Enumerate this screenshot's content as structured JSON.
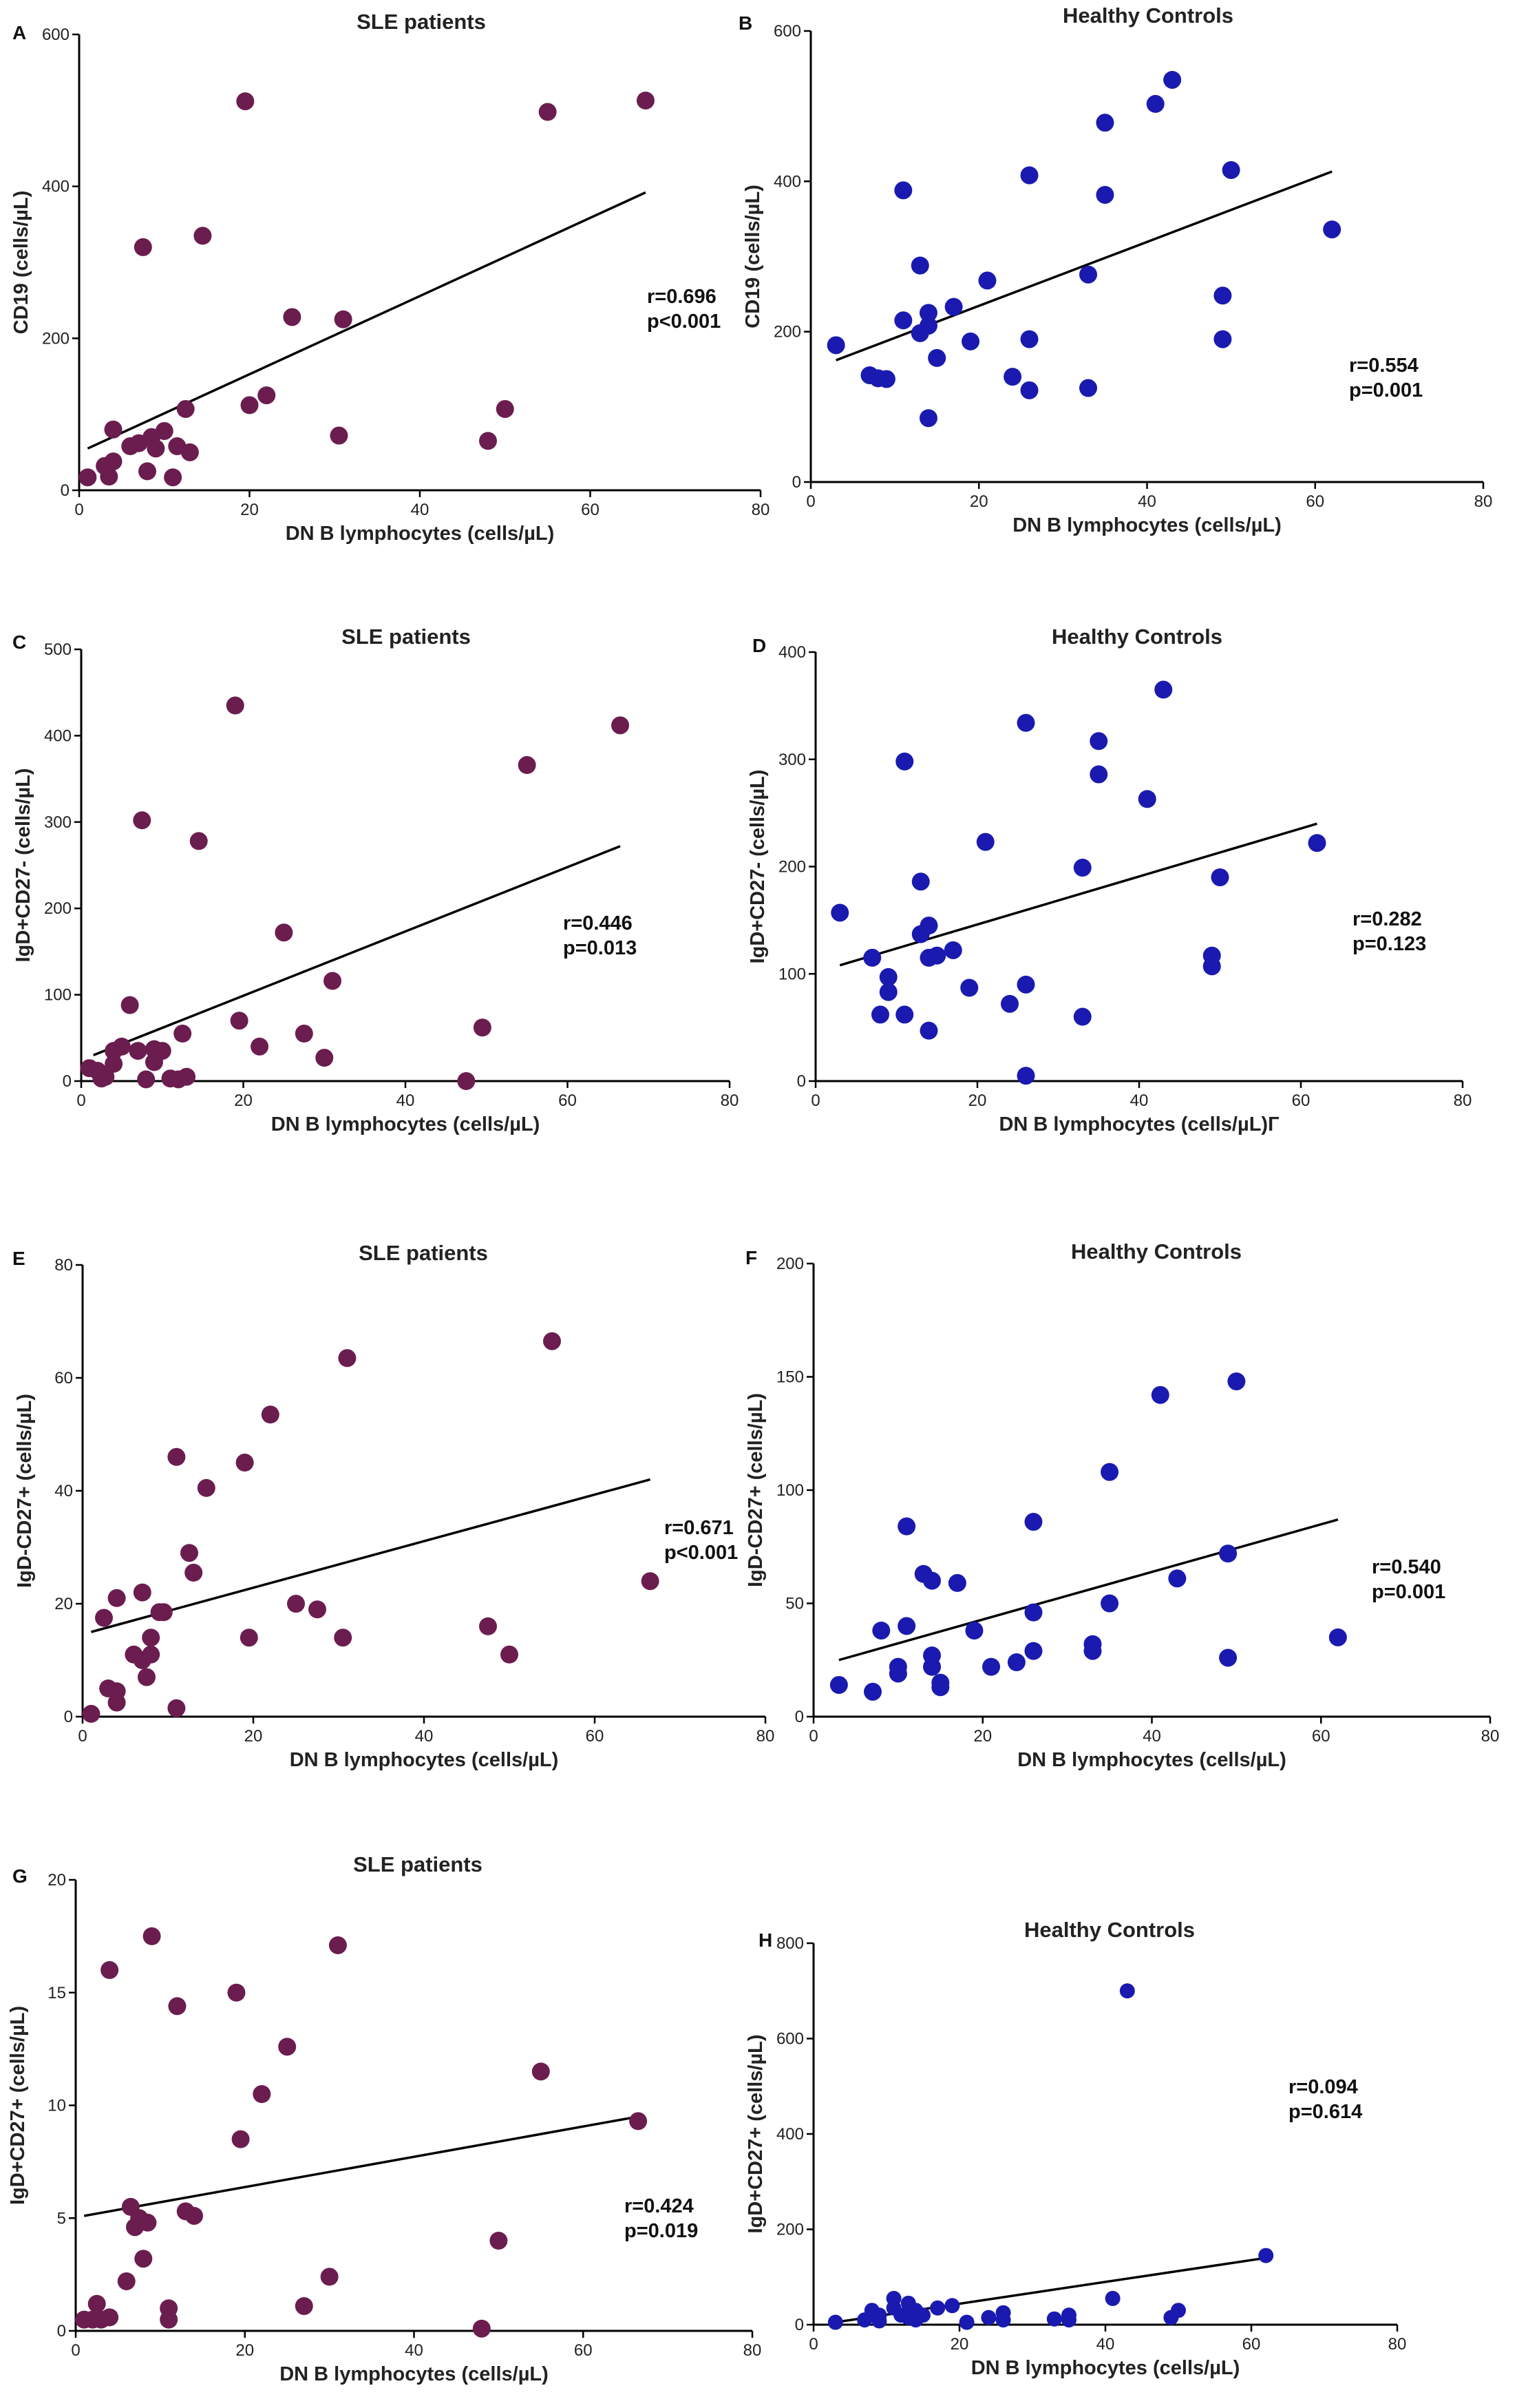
{
  "chart_data": [
    {
      "panel": "A",
      "type": "scatter",
      "title": "SLE patients",
      "xlabel": "DN B lymphocytes (cells/µL)",
      "ylabel": "CD19 (cells/µL)",
      "xlim": [
        0,
        80
      ],
      "ylim": [
        0,
        600
      ],
      "xticks": [
        0,
        20,
        40,
        60,
        80
      ],
      "yticks": [
        0,
        200,
        400,
        600
      ],
      "color": "#6b1d4f",
      "stats": [
        "r=0.696",
        "p<0.001"
      ],
      "fit": {
        "x": [
          1,
          66.5
        ],
        "y": [
          55,
          392
        ]
      },
      "points": [
        [
          1,
          17
        ],
        [
          3,
          32
        ],
        [
          3.5,
          18
        ],
        [
          4,
          80
        ],
        [
          4,
          38
        ],
        [
          6,
          58
        ],
        [
          7,
          62
        ],
        [
          7.5,
          320
        ],
        [
          8,
          25
        ],
        [
          8.5,
          70
        ],
        [
          9,
          55
        ],
        [
          10,
          78
        ],
        [
          11,
          17
        ],
        [
          11.5,
          58
        ],
        [
          12.5,
          107
        ],
        [
          13,
          50
        ],
        [
          14.5,
          335
        ],
        [
          19.5,
          512
        ],
        [
          20,
          112
        ],
        [
          22,
          125
        ],
        [
          25,
          228
        ],
        [
          30.5,
          72
        ],
        [
          31,
          225
        ],
        [
          48,
          65
        ],
        [
          50,
          107
        ],
        [
          55,
          498
        ],
        [
          66.5,
          513
        ]
      ]
    },
    {
      "panel": "B",
      "type": "scatter",
      "title": "Healthy Controls",
      "xlabel": "DN B lymphocytes (cells/µL)",
      "ylabel": "CD19 (cells/µL)",
      "xlim": [
        0,
        80
      ],
      "ylim": [
        0,
        600
      ],
      "xticks": [
        0,
        20,
        40,
        60,
        80
      ],
      "yticks": [
        0,
        200,
        400,
        600
      ],
      "color": "#1a1ab0",
      "stats": [
        "r=0.554",
        "p=0.001"
      ],
      "fit": {
        "x": [
          3,
          62
        ],
        "y": [
          162,
          413
        ]
      },
      "points": [
        [
          3,
          182
        ],
        [
          7,
          142
        ],
        [
          8,
          138
        ],
        [
          9,
          137
        ],
        [
          11,
          388
        ],
        [
          11,
          215
        ],
        [
          13,
          288
        ],
        [
          13,
          198
        ],
        [
          14,
          225
        ],
        [
          14,
          208
        ],
        [
          14,
          85
        ],
        [
          15,
          165
        ],
        [
          17,
          233
        ],
        [
          19,
          187
        ],
        [
          21,
          268
        ],
        [
          24,
          140
        ],
        [
          26,
          408
        ],
        [
          26,
          190
        ],
        [
          26,
          122
        ],
        [
          33,
          276
        ],
        [
          33,
          125
        ],
        [
          35,
          478
        ],
        [
          35,
          382
        ],
        [
          41,
          503
        ],
        [
          43,
          535
        ],
        [
          49,
          248
        ],
        [
          49,
          190
        ],
        [
          50,
          415
        ],
        [
          62,
          336
        ]
      ]
    },
    {
      "panel": "C",
      "type": "scatter",
      "title": "SLE patients",
      "xlabel": "DN B lymphocytes (cells/µL)",
      "ylabel": "IgD+CD27- (cells/µL)",
      "xlim": [
        0,
        80
      ],
      "ylim": [
        0,
        500
      ],
      "xticks": [
        0,
        20,
        40,
        60,
        80
      ],
      "yticks": [
        0,
        100,
        200,
        300,
        400,
        500
      ],
      "color": "#6b1d4f",
      "stats": [
        "r=0.446",
        "p=0.013"
      ],
      "fit": {
        "x": [
          1.5,
          66.5
        ],
        "y": [
          30,
          272
        ]
      },
      "points": [
        [
          1,
          15
        ],
        [
          2,
          12
        ],
        [
          2.5,
          3
        ],
        [
          3,
          5
        ],
        [
          4,
          35
        ],
        [
          4,
          20
        ],
        [
          5,
          40
        ],
        [
          6,
          88
        ],
        [
          7,
          35
        ],
        [
          7.5,
          302
        ],
        [
          8,
          2
        ],
        [
          9,
          37
        ],
        [
          9,
          22
        ],
        [
          10,
          35
        ],
        [
          11,
          3
        ],
        [
          12,
          2
        ],
        [
          12.5,
          55
        ],
        [
          13,
          5
        ],
        [
          14.5,
          278
        ],
        [
          19,
          435
        ],
        [
          19.5,
          70
        ],
        [
          22,
          40
        ],
        [
          25,
          172
        ],
        [
          27.5,
          55
        ],
        [
          30,
          27
        ],
        [
          31,
          116
        ],
        [
          47.5,
          0
        ],
        [
          49.5,
          62
        ],
        [
          55,
          366
        ],
        [
          66.5,
          412
        ]
      ]
    },
    {
      "panel": "D",
      "type": "scatter",
      "title": "Healthy Controls",
      "xlabel": "DN B lymphocytes (cells/µL)Г",
      "ylabel": "IgD+CD27- (cells/µL)",
      "xlim": [
        0,
        80
      ],
      "ylim": [
        0,
        400
      ],
      "xticks": [
        0,
        20,
        40,
        60,
        80
      ],
      "yticks": [
        0,
        100,
        200,
        300,
        400
      ],
      "color": "#1a1ab0",
      "stats": [
        "r=0.282",
        "p=0.123"
      ],
      "fit": {
        "x": [
          3,
          62
        ],
        "y": [
          108,
          240
        ]
      },
      "points": [
        [
          3,
          157
        ],
        [
          7,
          115
        ],
        [
          8,
          62
        ],
        [
          9,
          97
        ],
        [
          9,
          83
        ],
        [
          11,
          298
        ],
        [
          11,
          62
        ],
        [
          13,
          186
        ],
        [
          13,
          137
        ],
        [
          14,
          145
        ],
        [
          14,
          115
        ],
        [
          14,
          47
        ],
        [
          15,
          117
        ],
        [
          17,
          122
        ],
        [
          19,
          87
        ],
        [
          21,
          223
        ],
        [
          24,
          72
        ],
        [
          26,
          334
        ],
        [
          26,
          90
        ],
        [
          26,
          5
        ],
        [
          33,
          199
        ],
        [
          33,
          60
        ],
        [
          35,
          317
        ],
        [
          35,
          286
        ],
        [
          41,
          263
        ],
        [
          43,
          365
        ],
        [
          49,
          117
        ],
        [
          49,
          107
        ],
        [
          50,
          190
        ],
        [
          62,
          222
        ]
      ]
    },
    {
      "panel": "E",
      "type": "scatter",
      "title": "SLE patients",
      "xlabel": "DN B lymphocytes (cells/µL)",
      "ylabel": "IgD-CD27+ (cells/µL)",
      "xlim": [
        0,
        80
      ],
      "ylim": [
        0,
        80
      ],
      "xticks": [
        0,
        20,
        40,
        60,
        80
      ],
      "yticks": [
        0,
        20,
        40,
        60,
        80
      ],
      "color": "#6b1d4f",
      "stats": [
        "r=0.671",
        "p<0.001"
      ],
      "fit": {
        "x": [
          1,
          66.5
        ],
        "y": [
          15,
          42
        ]
      },
      "points": [
        [
          1,
          0.5
        ],
        [
          2.5,
          17.5
        ],
        [
          3,
          5
        ],
        [
          4,
          21
        ],
        [
          4,
          2.5
        ],
        [
          4,
          4.5
        ],
        [
          6,
          11
        ],
        [
          7,
          10
        ],
        [
          7,
          22
        ],
        [
          7.5,
          7
        ],
        [
          8,
          14
        ],
        [
          8,
          11
        ],
        [
          9,
          18.5
        ],
        [
          9.5,
          18.5
        ],
        [
          11,
          1.5
        ],
        [
          11,
          46
        ],
        [
          12.5,
          29
        ],
        [
          13,
          25.5
        ],
        [
          14.5,
          40.5
        ],
        [
          19,
          45
        ],
        [
          19.5,
          14
        ],
        [
          22,
          53.5
        ],
        [
          25,
          20
        ],
        [
          27.5,
          19
        ],
        [
          30.5,
          14
        ],
        [
          31,
          63.5
        ],
        [
          47.5,
          16
        ],
        [
          50,
          11
        ],
        [
          55,
          66.5
        ],
        [
          66.5,
          24
        ]
      ]
    },
    {
      "panel": "F",
      "type": "scatter",
      "title": "Healthy Controls",
      "xlabel": "DN B lymphocytes (cells/µL)",
      "ylabel": "IgD-CD27+ (cells/µL)",
      "xlim": [
        0,
        80
      ],
      "ylim": [
        0,
        200
      ],
      "xticks": [
        0,
        20,
        40,
        60,
        80
      ],
      "yticks": [
        0,
        50,
        100,
        150,
        200
      ],
      "color": "#1a1ab0",
      "stats": [
        "r=0.540",
        "p=0.001"
      ],
      "fit": {
        "x": [
          3,
          62
        ],
        "y": [
          25,
          87
        ]
      },
      "points": [
        [
          3,
          14
        ],
        [
          7,
          11
        ],
        [
          8,
          38
        ],
        [
          10,
          22
        ],
        [
          10,
          19
        ],
        [
          11,
          84
        ],
        [
          11,
          40
        ],
        [
          13,
          63
        ],
        [
          14,
          60
        ],
        [
          14,
          22
        ],
        [
          14,
          27
        ],
        [
          15,
          15
        ],
        [
          15,
          13
        ],
        [
          17,
          59
        ],
        [
          19,
          38
        ],
        [
          21,
          22
        ],
        [
          24,
          24
        ],
        [
          26,
          86
        ],
        [
          26,
          46
        ],
        [
          26,
          29
        ],
        [
          33,
          32
        ],
        [
          33,
          29
        ],
        [
          35,
          108
        ],
        [
          35,
          50
        ],
        [
          41,
          142
        ],
        [
          43,
          61
        ],
        [
          49,
          72
        ],
        [
          49,
          26
        ],
        [
          50,
          148
        ],
        [
          62,
          35
        ]
      ]
    },
    {
      "panel": "G",
      "type": "scatter",
      "title": "SLE patients",
      "xlabel": "DN B lymphocytes (cells/µL)",
      "ylabel": "IgD+CD27+ (cells/µL)",
      "xlim": [
        0,
        80
      ],
      "ylim": [
        0,
        20
      ],
      "xticks": [
        0,
        20,
        40,
        60,
        80
      ],
      "yticks": [
        0,
        5,
        10,
        15,
        20
      ],
      "color": "#6b1d4f",
      "stats": [
        "r=0.424",
        "p=0.019"
      ],
      "fit": {
        "x": [
          1,
          66.5
        ],
        "y": [
          5.1,
          9.5
        ]
      },
      "points": [
        [
          1,
          0.5
        ],
        [
          2,
          0.5
        ],
        [
          2.5,
          1.2
        ],
        [
          3,
          0.5
        ],
        [
          4,
          16
        ],
        [
          4,
          0.6
        ],
        [
          6,
          2.2
        ],
        [
          6.5,
          5.5
        ],
        [
          7,
          4.6
        ],
        [
          7.5,
          5
        ],
        [
          8,
          3.2
        ],
        [
          8.5,
          4.8
        ],
        [
          9,
          17.5
        ],
        [
          11,
          1
        ],
        [
          11,
          0.5
        ],
        [
          12,
          14.4
        ],
        [
          13,
          5.3
        ],
        [
          14,
          5.1
        ],
        [
          19,
          15
        ],
        [
          19.5,
          8.5
        ],
        [
          22,
          10.5
        ],
        [
          25,
          12.6
        ],
        [
          27,
          1.1
        ],
        [
          30,
          2.4
        ],
        [
          31,
          17.1
        ],
        [
          48,
          0.1
        ],
        [
          50,
          4
        ],
        [
          55,
          11.5
        ],
        [
          66.5,
          9.3
        ]
      ]
    },
    {
      "panel": "H",
      "type": "scatter",
      "title": "Healthy Controls",
      "xlabel": "DN B lymphocytes (cells/µL)",
      "ylabel": "IgD+CD27+ (cells/µL)",
      "xlim": [
        0,
        80
      ],
      "ylim": [
        0,
        800
      ],
      "xticks": [
        0,
        20,
        40,
        60,
        80
      ],
      "yticks": [
        0,
        200,
        400,
        600,
        800
      ],
      "color": "#1a1ab0",
      "stats": [
        "r=0.094",
        "p=0.614"
      ],
      "fit": {
        "x": [
          3,
          62
        ],
        "y": [
          5,
          140
        ]
      },
      "points": [
        [
          3,
          5
        ],
        [
          7,
          10
        ],
        [
          8,
          30
        ],
        [
          9,
          20
        ],
        [
          9,
          8
        ],
        [
          11,
          55
        ],
        [
          11,
          35
        ],
        [
          12,
          20
        ],
        [
          13,
          45
        ],
        [
          13,
          15
        ],
        [
          14,
          30
        ],
        [
          14,
          10
        ],
        [
          15,
          20
        ],
        [
          17,
          35
        ],
        [
          19,
          40
        ],
        [
          21,
          5
        ],
        [
          24,
          15
        ],
        [
          26,
          25
        ],
        [
          26,
          10
        ],
        [
          33,
          12
        ],
        [
          35,
          20
        ],
        [
          35,
          10
        ],
        [
          41,
          55
        ],
        [
          43,
          700
        ],
        [
          49,
          15
        ],
        [
          50,
          30
        ],
        [
          62,
          145
        ]
      ]
    }
  ]
}
